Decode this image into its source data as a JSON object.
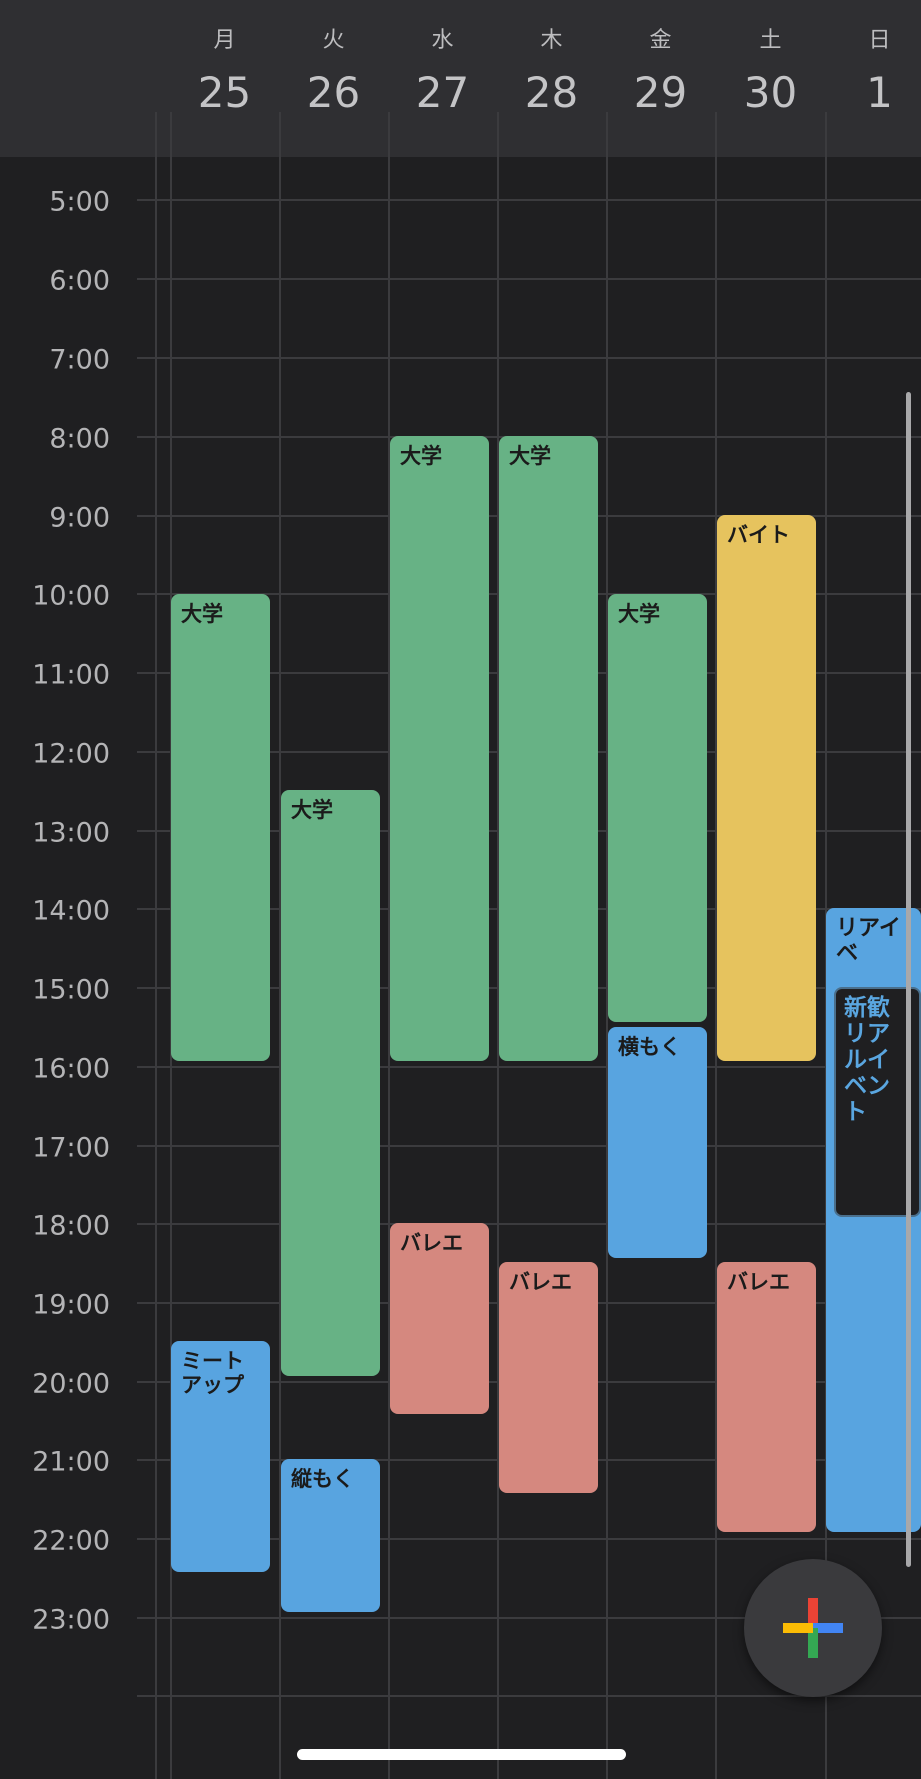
{
  "header": {
    "days": [
      {
        "weekday": "月",
        "date": "25"
      },
      {
        "weekday": "火",
        "date": "26"
      },
      {
        "weekday": "水",
        "date": "27"
      },
      {
        "weekday": "木",
        "date": "28"
      },
      {
        "weekday": "金",
        "date": "29"
      },
      {
        "weekday": "土",
        "date": "30"
      },
      {
        "weekday": "日",
        "date": "1"
      }
    ]
  },
  "hours": [
    "5:00",
    "6:00",
    "7:00",
    "8:00",
    "9:00",
    "10:00",
    "11:00",
    "12:00",
    "13:00",
    "14:00",
    "15:00",
    "16:00",
    "17:00",
    "18:00",
    "19:00",
    "20:00",
    "21:00",
    "22:00",
    "23:00"
  ],
  "events": [
    {
      "title": "大学",
      "day": "月 25",
      "start": "10:00",
      "end": "15:55",
      "color": "#67b285"
    },
    {
      "title": "ミートアップ",
      "day": "月 25",
      "start": "19:30",
      "end": "22:25",
      "color": "#58a4e0"
    },
    {
      "title": "大学",
      "day": "火 26",
      "start": "12:30",
      "end": "19:55",
      "color": "#67b285"
    },
    {
      "title": "縦もく",
      "day": "火 26",
      "start": "21:00",
      "end": "22:55",
      "color": "#58a4e0"
    },
    {
      "title": "大学",
      "day": "水 27",
      "start": "8:00",
      "end": "15:55",
      "color": "#67b285"
    },
    {
      "title": "バレエ",
      "day": "水 27",
      "start": "18:00",
      "end": "20:25",
      "color": "#d5887f"
    },
    {
      "title": "大学",
      "day": "木 28",
      "start": "8:00",
      "end": "15:55",
      "color": "#67b285"
    },
    {
      "title": "バレエ",
      "day": "木 28",
      "start": "18:30",
      "end": "21:25",
      "color": "#d5887f"
    },
    {
      "title": "大学",
      "day": "金 29",
      "start": "10:00",
      "end": "15:25",
      "color": "#67b285"
    },
    {
      "title": "横もく",
      "day": "金 29",
      "start": "15:30",
      "end": "18:25",
      "color": "#58a4e0"
    },
    {
      "title": "バイト",
      "day": "土 30",
      "start": "9:00",
      "end": "15:55",
      "color": "#e6c35e"
    },
    {
      "title": "バレエ",
      "day": "土 30",
      "start": "18:30",
      "end": "21:55",
      "color": "#d5887f"
    },
    {
      "title": "リアイベ",
      "day": "日 1",
      "start": "14:00",
      "end": "21:55",
      "color": "#58a4e0"
    },
    {
      "title": "新歓リアルイベント",
      "day": "日 1",
      "start": "15:00",
      "end": "18:00",
      "color": "#58a4e0"
    }
  ],
  "fab": {
    "icon": "plus-icon",
    "colors": [
      "#ea4335",
      "#4285f4",
      "#34a853",
      "#fbbc05"
    ]
  },
  "colors": {
    "background": "#1f1f21",
    "header": "#2f2f32",
    "gridline": "#3b3b3e"
  }
}
